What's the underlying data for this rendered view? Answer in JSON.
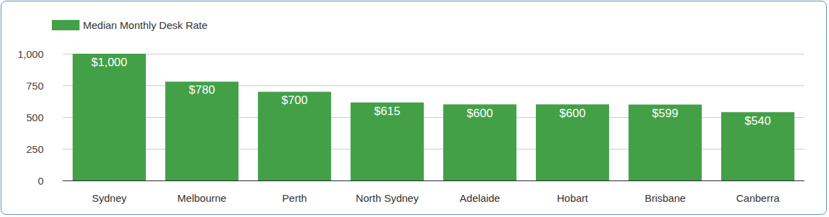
{
  "chart_data": {
    "type": "bar",
    "categories": [
      "Sydney",
      "Melbourne",
      "Perth",
      "North Sydney",
      "Adelaide",
      "Hobart",
      "Brisbane",
      "Canberra"
    ],
    "series": [
      {
        "name": "Median Monthly Desk Rate",
        "color": "#43a047",
        "values": [
          1000,
          780,
          700,
          615,
          600,
          600,
          599,
          540
        ],
        "value_labels": [
          "$1,000",
          "$780",
          "$700",
          "$615",
          "$600",
          "$600",
          "$599",
          "$540"
        ]
      }
    ],
    "ylim": [
      0,
      1000
    ],
    "yticks": [
      0,
      250,
      500,
      750,
      {
        "value": 1000,
        "label": "1,000"
      }
    ],
    "grid": true,
    "legend": "top-left",
    "data_labels": true
  }
}
